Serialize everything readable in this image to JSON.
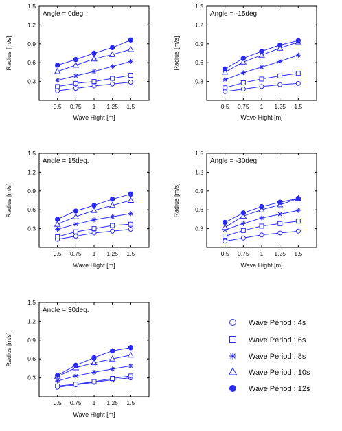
{
  "colors": {
    "series": "#2b2bf0",
    "axis": "#000000",
    "frame": "#000000"
  },
  "legend": {
    "items": [
      {
        "label": "Wave Period : 4s",
        "marker": "circle-open-icon"
      },
      {
        "label": "Wave Period : 6s",
        "marker": "square-open-icon"
      },
      {
        "label": "Wave Period : 8s",
        "marker": "asterisk-icon"
      },
      {
        "label": "Wave Period : 10s",
        "marker": "triangle-open-icon"
      },
      {
        "label": "Wave Period : 12s",
        "marker": "circle-filled-icon"
      }
    ]
  },
  "chart_data": [
    {
      "type": "line",
      "title": "Angle = 0deg.",
      "xlabel": "Wave Hight [m]",
      "ylabel": "Radius [m/s]",
      "x": [
        0.5,
        0.75,
        1,
        1.25,
        1.5
      ],
      "x_tick_labels": [
        "0.5",
        "0.75",
        "1",
        "1.25",
        "1.5"
      ],
      "y_ticks": [
        0.3,
        0.6,
        0.9,
        1.2,
        1.5
      ],
      "y_tick_labels": [
        "0.3",
        "0.6",
        "0.9",
        "1.2",
        "1.5"
      ],
      "xlim": [
        0.25,
        1.75
      ],
      "ylim": [
        0,
        1.5
      ],
      "series": [
        {
          "name": "Wave Period : 4s",
          "marker": "circle-open",
          "values": [
            0.15,
            0.19,
            0.23,
            0.26,
            0.29
          ]
        },
        {
          "name": "Wave Period : 6s",
          "marker": "square-open",
          "values": [
            0.22,
            0.27,
            0.3,
            0.35,
            0.4
          ]
        },
        {
          "name": "Wave Period : 8s",
          "marker": "asterisk",
          "values": [
            0.32,
            0.39,
            0.46,
            0.54,
            0.62
          ]
        },
        {
          "name": "Wave Period : 10s",
          "marker": "triangle-open",
          "values": [
            0.46,
            0.56,
            0.66,
            0.73,
            0.81
          ]
        },
        {
          "name": "Wave Period : 12s",
          "marker": "circle-filled",
          "values": [
            0.56,
            0.65,
            0.75,
            0.84,
            0.96
          ]
        }
      ]
    },
    {
      "type": "line",
      "title": "Angle = -15deg.",
      "xlabel": "Wave Hight [m]",
      "ylabel": "Radius [m/s]",
      "x": [
        0.5,
        0.75,
        1,
        1.25,
        1.5
      ],
      "x_tick_labels": [
        "0.5",
        "0.75",
        "1",
        "1.25",
        "1.5"
      ],
      "y_ticks": [
        0.3,
        0.6,
        0.9,
        1.2,
        1.5
      ],
      "y_tick_labels": [
        "0.3",
        "0.6",
        "0.9",
        "1.2",
        "1.5"
      ],
      "xlim": [
        0.25,
        1.75
      ],
      "ylim": [
        0,
        1.5
      ],
      "series": [
        {
          "name": "Wave Period : 4s",
          "marker": "circle-open",
          "values": [
            0.14,
            0.18,
            0.22,
            0.25,
            0.27
          ]
        },
        {
          "name": "Wave Period : 6s",
          "marker": "square-open",
          "values": [
            0.2,
            0.28,
            0.34,
            0.39,
            0.43
          ]
        },
        {
          "name": "Wave Period : 8s",
          "marker": "asterisk",
          "values": [
            0.33,
            0.44,
            0.53,
            0.62,
            0.72
          ]
        },
        {
          "name": "Wave Period : 10s",
          "marker": "triangle-open",
          "values": [
            0.45,
            0.61,
            0.72,
            0.83,
            0.93
          ]
        },
        {
          "name": "Wave Period : 12s",
          "marker": "circle-filled",
          "values": [
            0.5,
            0.67,
            0.78,
            0.88,
            0.95
          ]
        }
      ]
    },
    {
      "type": "line",
      "title": "Angle = 15deg.",
      "xlabel": "Wave Hight [m]",
      "ylabel": "Radius [m/s]",
      "x": [
        0.5,
        0.75,
        1,
        1.25,
        1.5
      ],
      "x_tick_labels": [
        "0.5",
        "0.75",
        "1",
        "1.25",
        "1.5"
      ],
      "y_ticks": [
        0.3,
        0.6,
        0.9,
        1.2,
        1.5
      ],
      "y_tick_labels": [
        "0.3",
        "0.6",
        "0.9",
        "1.2",
        "1.5"
      ],
      "xlim": [
        0.25,
        1.75
      ],
      "ylim": [
        0,
        1.5
      ],
      "series": [
        {
          "name": "Wave Period : 4s",
          "marker": "circle-open",
          "values": [
            0.13,
            0.18,
            0.23,
            0.26,
            0.29
          ]
        },
        {
          "name": "Wave Period : 6s",
          "marker": "square-open",
          "values": [
            0.17,
            0.25,
            0.3,
            0.35,
            0.37
          ]
        },
        {
          "name": "Wave Period : 8s",
          "marker": "asterisk",
          "values": [
            0.29,
            0.37,
            0.44,
            0.49,
            0.54
          ]
        },
        {
          "name": "Wave Period : 10s",
          "marker": "triangle-open",
          "values": [
            0.37,
            0.49,
            0.59,
            0.67,
            0.75
          ]
        },
        {
          "name": "Wave Period : 12s",
          "marker": "circle-filled",
          "values": [
            0.45,
            0.58,
            0.67,
            0.77,
            0.85
          ]
        }
      ]
    },
    {
      "type": "line",
      "title": "Angle = -30deg.",
      "xlabel": "Wave Hight [m]",
      "ylabel": "Radius [m/s]",
      "x": [
        0.5,
        0.75,
        1,
        1.25,
        1.5
      ],
      "x_tick_labels": [
        "0.5",
        "0.75",
        "1",
        "1.25",
        "1.5"
      ],
      "y_ticks": [
        0.3,
        0.6,
        0.9,
        1.2,
        1.5
      ],
      "y_tick_labels": [
        "0.3",
        "0.6",
        "0.9",
        "1.2",
        "1.5"
      ],
      "xlim": [
        0.25,
        1.75
      ],
      "ylim": [
        0,
        1.5
      ],
      "series": [
        {
          "name": "Wave Period : 4s",
          "marker": "circle-open",
          "values": [
            0.1,
            0.15,
            0.2,
            0.23,
            0.26
          ]
        },
        {
          "name": "Wave Period : 6s",
          "marker": "square-open",
          "values": [
            0.18,
            0.27,
            0.34,
            0.38,
            0.42
          ]
        },
        {
          "name": "Wave Period : 8s",
          "marker": "asterisk",
          "values": [
            0.28,
            0.38,
            0.47,
            0.53,
            0.59
          ]
        },
        {
          "name": "Wave Period : 10s",
          "marker": "triangle-open",
          "values": [
            0.32,
            0.5,
            0.6,
            0.68,
            0.78
          ]
        },
        {
          "name": "Wave Period : 12s",
          "marker": "circle-filled",
          "values": [
            0.4,
            0.55,
            0.65,
            0.72,
            0.78
          ]
        }
      ]
    },
    {
      "type": "line",
      "title": "Angle = 30deg.",
      "xlabel": "Wave Hight [m]",
      "ylabel": "Radius [m/s]",
      "x": [
        0.5,
        0.75,
        1,
        1.25,
        1.5
      ],
      "x_tick_labels": [
        "0.5",
        "0.75",
        "1",
        "1.25",
        "1.5"
      ],
      "y_ticks": [
        0.3,
        0.6,
        0.9,
        1.2,
        1.5
      ],
      "y_tick_labels": [
        "0.3",
        "0.6",
        "0.9",
        "1.2",
        "1.5"
      ],
      "xlim": [
        0.25,
        1.75
      ],
      "ylim": [
        0,
        1.5
      ],
      "series": [
        {
          "name": "Wave Period : 4s",
          "marker": "circle-open",
          "values": [
            0.15,
            0.19,
            0.23,
            0.27,
            0.3
          ]
        },
        {
          "name": "Wave Period : 6s",
          "marker": "square-open",
          "values": [
            0.17,
            0.2,
            0.24,
            0.29,
            0.33
          ]
        },
        {
          "name": "Wave Period : 8s",
          "marker": "asterisk",
          "values": [
            0.25,
            0.33,
            0.39,
            0.44,
            0.49
          ]
        },
        {
          "name": "Wave Period : 10s",
          "marker": "triangle-open",
          "values": [
            0.32,
            0.46,
            0.54,
            0.6,
            0.66
          ]
        },
        {
          "name": "Wave Period : 12s",
          "marker": "circle-filled",
          "values": [
            0.34,
            0.5,
            0.62,
            0.73,
            0.78
          ]
        }
      ]
    }
  ]
}
